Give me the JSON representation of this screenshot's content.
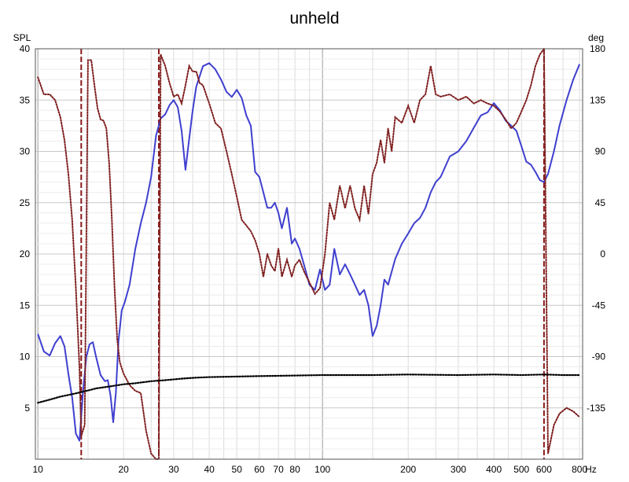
{
  "chart_data": {
    "type": "line",
    "title": "unheld",
    "y_left_label": "SPL",
    "y_right_label": "deg",
    "x_unit_label": "Hz",
    "x_scale": "log",
    "xlim": [
      9.8,
      820
    ],
    "ylim_left": [
      0,
      40
    ],
    "ylim_right": [
      -180,
      180
    ],
    "grid": true,
    "legend": "none",
    "x_ticks": [
      {
        "value": 10,
        "label": "10"
      },
      {
        "value": 20,
        "label": "20"
      },
      {
        "value": 30,
        "label": "30"
      },
      {
        "value": 40,
        "label": "40"
      },
      {
        "value": 50,
        "label": "50"
      },
      {
        "value": 60,
        "label": "60"
      },
      {
        "value": 70,
        "label": "70"
      },
      {
        "value": 80,
        "label": "80"
      },
      {
        "value": 100,
        "label": "100"
      },
      {
        "value": 200,
        "label": "200"
      },
      {
        "value": 300,
        "label": "300"
      },
      {
        "value": 400,
        "label": "400"
      },
      {
        "value": 500,
        "label": "500"
      },
      {
        "value": 600,
        "label": "600"
      },
      {
        "value": 800,
        "label": "800"
      }
    ],
    "y_left_ticks": [
      {
        "value": 5,
        "label": "5"
      },
      {
        "value": 10,
        "label": "10"
      },
      {
        "value": 15,
        "label": "15"
      },
      {
        "value": 20,
        "label": "20"
      },
      {
        "value": 25,
        "label": "25"
      },
      {
        "value": 30,
        "label": "30"
      },
      {
        "value": 35,
        "label": "35"
      },
      {
        "value": 40,
        "label": "40"
      }
    ],
    "y_right_ticks": [
      {
        "value": 180,
        "label": "180"
      },
      {
        "value": 135,
        "label": "135"
      },
      {
        "value": 90,
        "label": "90"
      },
      {
        "value": 45,
        "label": "45"
      },
      {
        "value": 0,
        "label": "0"
      },
      {
        "value": -45,
        "label": "-45"
      },
      {
        "value": -90,
        "label": "-90"
      },
      {
        "value": -135,
        "label": "-135"
      }
    ],
    "markers_hz": [
      14.2,
      26.6,
      600
    ],
    "series": [
      {
        "key": "spl",
        "axis": "left",
        "color": "#3f3fcf",
        "style": "solid",
        "x": [
          10,
          10.5,
          11,
          11.5,
          12,
          12.4,
          12.8,
          13.2,
          13.6,
          14,
          14.4,
          14.8,
          15.2,
          15.6,
          16,
          16.6,
          17.2,
          17.6,
          18,
          18.4,
          18.8,
          19.2,
          19.7,
          20.2,
          21,
          22,
          23,
          24,
          25,
          26,
          27,
          28,
          29,
          30,
          31,
          32,
          33,
          34,
          35,
          36,
          38,
          40,
          42,
          44,
          46,
          48,
          50,
          52,
          54,
          56,
          58,
          60,
          62,
          64,
          66,
          68,
          70,
          72,
          75,
          78,
          80,
          83,
          86,
          90,
          94,
          98,
          102,
          106,
          110,
          115,
          120,
          125,
          130,
          135,
          140,
          145,
          150,
          155,
          160,
          165,
          170,
          180,
          190,
          200,
          210,
          220,
          230,
          240,
          250,
          260,
          280,
          300,
          320,
          340,
          360,
          380,
          400,
          420,
          440,
          460,
          480,
          500,
          520,
          540,
          560,
          580,
          600,
          620,
          650,
          680,
          720,
          760,
          800
        ],
        "y": [
          12.2,
          10.5,
          10.1,
          11.3,
          12,
          11,
          8.3,
          6,
          2.5,
          1.8,
          6.5,
          10,
          11.2,
          11.4,
          10,
          8.2,
          7.6,
          7.7,
          6.2,
          3.6,
          6.5,
          11.5,
          14.5,
          15.3,
          17,
          20.5,
          23,
          25,
          27.5,
          31.5,
          33.2,
          33.6,
          34.5,
          35,
          34.3,
          32,
          28.2,
          31.2,
          34,
          36.3,
          38.3,
          38.6,
          38,
          37,
          35.8,
          35.3,
          36,
          35.2,
          33.5,
          32.5,
          28,
          27.5,
          26,
          24.5,
          24.5,
          25,
          24,
          22.5,
          24.5,
          21,
          21.5,
          20.5,
          19,
          17,
          16.5,
          18.5,
          16.5,
          17,
          20.5,
          18,
          19,
          18,
          17,
          16,
          16.5,
          15,
          12,
          13,
          15,
          17.5,
          17,
          19.5,
          21,
          22,
          23,
          23.5,
          24.5,
          26,
          27,
          27.5,
          29.5,
          30,
          31,
          32.3,
          33.5,
          33.8,
          34.7,
          34,
          33,
          32.5,
          32,
          30.5,
          29,
          28.7,
          28,
          27.2,
          27,
          27.8,
          30,
          32.5,
          35,
          37,
          38.5
        ]
      },
      {
        "key": "phase",
        "axis": "right",
        "color": "#7f1f1f",
        "style": "dotted",
        "x": [
          10,
          10.5,
          11,
          11.5,
          12,
          12.4,
          12.8,
          13.2,
          13.6,
          14,
          14.2,
          14.6,
          15,
          15.4,
          15.8,
          16.2,
          16.6,
          17,
          17.4,
          17.8,
          18.2,
          18.6,
          19,
          19.4,
          20,
          21,
          22,
          23,
          24,
          25,
          26,
          26.6,
          27,
          28,
          29,
          30,
          31,
          32,
          33,
          34,
          35,
          36,
          37,
          38,
          40,
          42,
          44,
          46,
          48,
          50,
          52,
          54,
          56,
          58,
          60,
          62,
          64,
          66,
          68,
          70,
          72,
          75,
          78,
          80,
          83,
          86,
          90,
          94,
          98,
          102,
          106,
          110,
          115,
          120,
          125,
          130,
          135,
          140,
          145,
          150,
          155,
          160,
          165,
          170,
          175,
          180,
          190,
          200,
          210,
          220,
          230,
          240,
          250,
          260,
          280,
          300,
          320,
          340,
          360,
          380,
          400,
          420,
          440,
          460,
          480,
          500,
          520,
          540,
          560,
          580,
          600,
          620,
          650,
          680,
          720,
          760,
          800
        ],
        "y": [
          155,
          140,
          140,
          135,
          120,
          100,
          70,
          30,
          -30,
          -100,
          -160,
          -150,
          170,
          170,
          148,
          128,
          118,
          117,
          110,
          80,
          30,
          -30,
          -75,
          -95,
          -105,
          -115,
          -120,
          -122,
          -155,
          -175,
          -180,
          -180,
          175,
          165,
          150,
          138,
          140,
          132,
          148,
          165,
          160,
          160,
          150,
          148,
          132,
          115,
          110,
          90,
          70,
          50,
          30,
          25,
          20,
          12,
          0,
          -20,
          0,
          -10,
          -15,
          5,
          -20,
          -5,
          -20,
          -10,
          -5,
          -15,
          -25,
          -35,
          -30,
          0,
          45,
          30,
          60,
          40,
          60,
          40,
          30,
          60,
          35,
          70,
          80,
          100,
          80,
          110,
          90,
          120,
          115,
          130,
          115,
          135,
          140,
          165,
          140,
          138,
          140,
          135,
          138,
          132,
          135,
          132,
          130,
          125,
          118,
          110,
          115,
          125,
          135,
          148,
          165,
          175,
          180,
          -175,
          -150,
          -140,
          -135,
          -138,
          -143
        ]
      },
      {
        "key": "coherence",
        "axis": "left",
        "color": "#000000",
        "style": "dotted",
        "x": [
          10,
          11,
          12,
          13,
          14,
          15,
          16,
          18,
          20,
          22,
          25,
          28,
          32,
          36,
          40,
          50,
          60,
          80,
          100,
          150,
          200,
          300,
          400,
          500,
          600,
          700,
          800
        ],
        "y": [
          5.5,
          5.8,
          6.1,
          6.3,
          6.5,
          6.7,
          6.9,
          7.1,
          7.3,
          7.4,
          7.6,
          7.7,
          7.85,
          7.95,
          8.0,
          8.05,
          8.1,
          8.15,
          8.2,
          8.2,
          8.25,
          8.2,
          8.25,
          8.2,
          8.25,
          8.2,
          8.2
        ]
      }
    ]
  }
}
